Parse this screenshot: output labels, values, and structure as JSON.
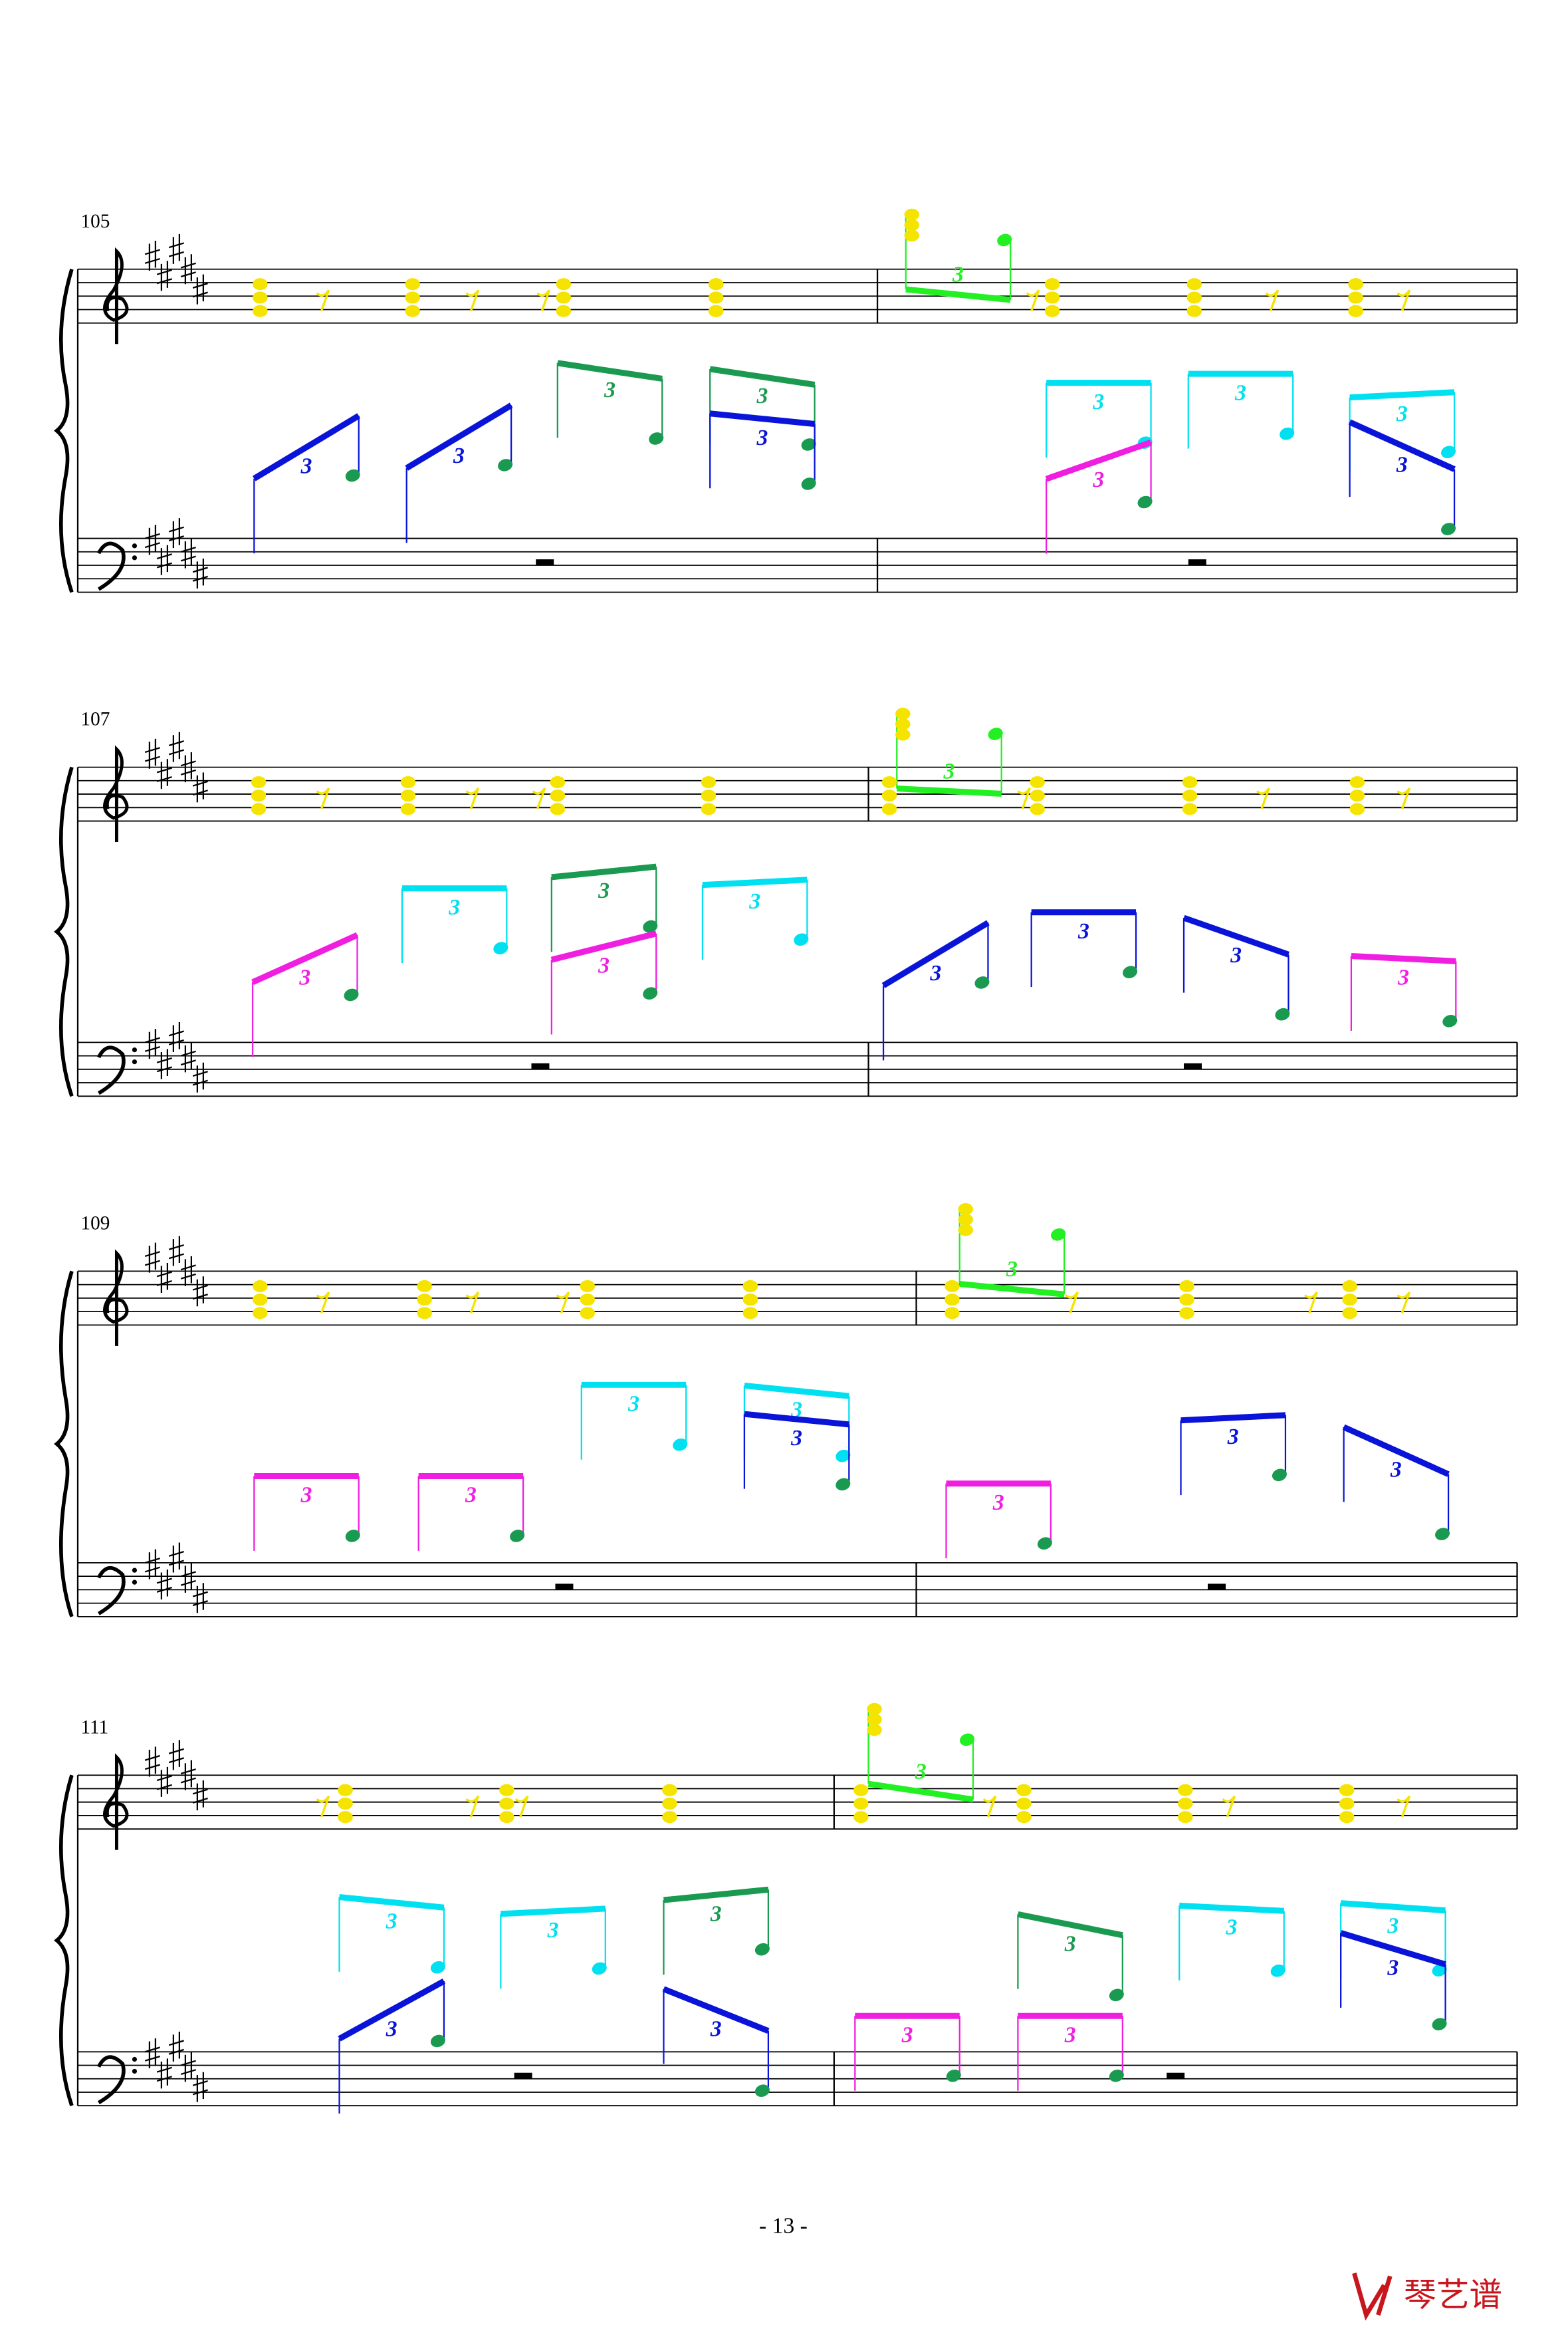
{
  "systems": [
    {
      "measure_number": "105",
      "triplets": [
        "3",
        "3",
        "3",
        "3",
        "3",
        "3",
        "3",
        "3",
        "3",
        "3",
        "3"
      ]
    },
    {
      "measure_number": "107",
      "triplets": [
        "3",
        "3",
        "3",
        "3",
        "3",
        "3",
        "3",
        "3",
        "3",
        "3"
      ]
    },
    {
      "measure_number": "109",
      "triplets": [
        "3",
        "3",
        "3",
        "3",
        "3",
        "3",
        "3",
        "3",
        "3"
      ]
    },
    {
      "measure_number": "111",
      "triplets": [
        "3",
        "3",
        "3",
        "3",
        "3",
        "3",
        "3",
        "3",
        "3",
        "3",
        "3",
        "3"
      ]
    }
  ],
  "footer": {
    "page_number": "- 13 -",
    "logo": "琴艺谱"
  }
}
